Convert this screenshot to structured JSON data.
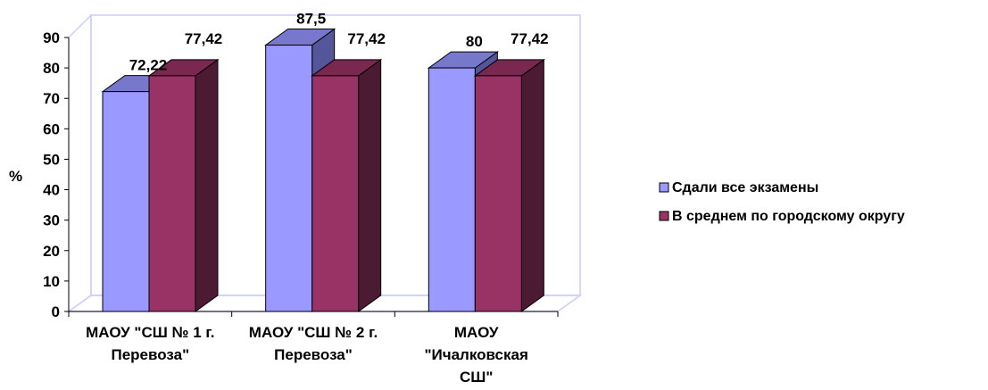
{
  "chart_data": {
    "type": "bar",
    "title": "",
    "xlabel": "",
    "ylabel": "%",
    "ylim": [
      0,
      90
    ],
    "yticks": [
      0,
      10,
      20,
      30,
      40,
      50,
      60,
      70,
      80,
      90
    ],
    "grid": false,
    "legend_position": "right",
    "categories": [
      [
        "МАОУ \"СШ № 1 г.",
        "Перевоза\""
      ],
      [
        "МАОУ \"СШ № 2 г.",
        "Перевоза\""
      ],
      [
        "МАОУ",
        "\"Ичалковская",
        "СШ\""
      ]
    ],
    "series": [
      {
        "name": "Сдали все экзамены",
        "values": [
          72.22,
          87.5,
          80
        ],
        "labels": [
          "72,22",
          "87,5",
          "80"
        ],
        "color": "#9999ff",
        "top_color": "#7777cc",
        "side_color": "#55559a"
      },
      {
        "name": "В среднем по городскому округу",
        "values": [
          77.42,
          77.42,
          77.42
        ],
        "labels": [
          "77,42",
          "77,42",
          "77,42"
        ],
        "color": "#993366",
        "top_color": "#7a2850",
        "side_color": "#4d1a33"
      }
    ],
    "frame_color": "#ccccff"
  }
}
